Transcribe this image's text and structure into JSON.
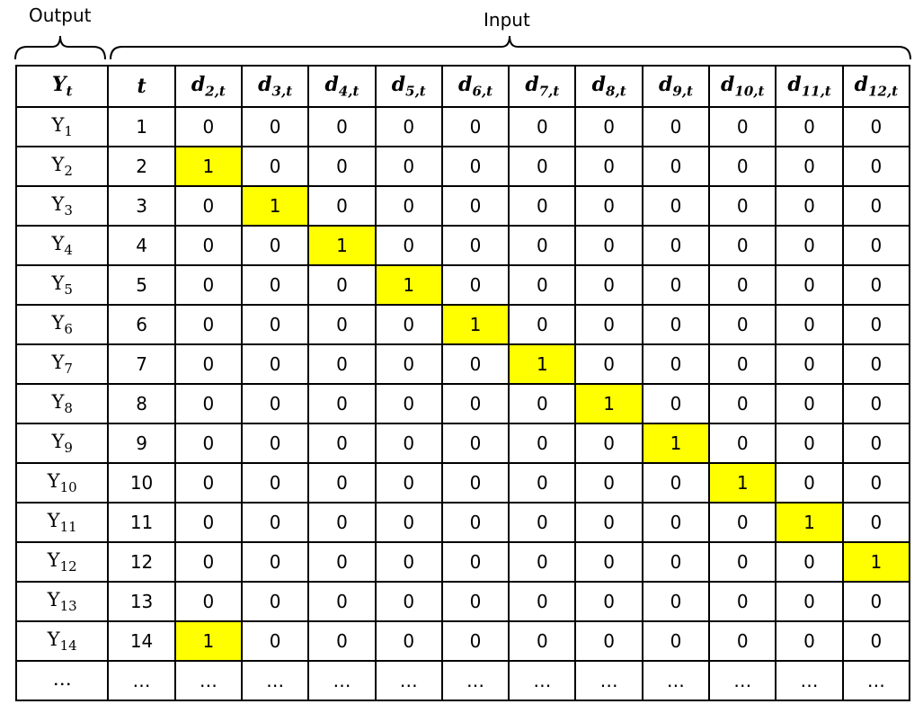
{
  "labels": {
    "output": "Output",
    "input": "Input"
  },
  "header": {
    "y": {
      "base": "Y",
      "sub": "t"
    },
    "t": "t",
    "d": [
      {
        "base": "d",
        "sub": "2,t"
      },
      {
        "base": "d",
        "sub": "3,t"
      },
      {
        "base": "d",
        "sub": "4,t"
      },
      {
        "base": "d",
        "sub": "5,t"
      },
      {
        "base": "d",
        "sub": "6,t"
      },
      {
        "base": "d",
        "sub": "7,t"
      },
      {
        "base": "d",
        "sub": "8,t"
      },
      {
        "base": "d",
        "sub": "9,t"
      },
      {
        "base": "d",
        "sub": "10,t"
      },
      {
        "base": "d",
        "sub": "11,t"
      },
      {
        "base": "d",
        "sub": "12,t"
      }
    ]
  },
  "rows": [
    {
      "y": {
        "base": "Y",
        "sub": "1"
      },
      "t": "1",
      "d": [
        "0",
        "0",
        "0",
        "0",
        "0",
        "0",
        "0",
        "0",
        "0",
        "0",
        "0"
      ]
    },
    {
      "y": {
        "base": "Y",
        "sub": "2"
      },
      "t": "2",
      "d": [
        "1",
        "0",
        "0",
        "0",
        "0",
        "0",
        "0",
        "0",
        "0",
        "0",
        "0"
      ]
    },
    {
      "y": {
        "base": "Y",
        "sub": "3"
      },
      "t": "3",
      "d": [
        "0",
        "1",
        "0",
        "0",
        "0",
        "0",
        "0",
        "0",
        "0",
        "0",
        "0"
      ]
    },
    {
      "y": {
        "base": "Y",
        "sub": "4"
      },
      "t": "4",
      "d": [
        "0",
        "0",
        "1",
        "0",
        "0",
        "0",
        "0",
        "0",
        "0",
        "0",
        "0"
      ]
    },
    {
      "y": {
        "base": "Y",
        "sub": "5"
      },
      "t": "5",
      "d": [
        "0",
        "0",
        "0",
        "1",
        "0",
        "0",
        "0",
        "0",
        "0",
        "0",
        "0"
      ]
    },
    {
      "y": {
        "base": "Y",
        "sub": "6"
      },
      "t": "6",
      "d": [
        "0",
        "0",
        "0",
        "0",
        "1",
        "0",
        "0",
        "0",
        "0",
        "0",
        "0"
      ]
    },
    {
      "y": {
        "base": "Y",
        "sub": "7"
      },
      "t": "7",
      "d": [
        "0",
        "0",
        "0",
        "0",
        "0",
        "1",
        "0",
        "0",
        "0",
        "0",
        "0"
      ]
    },
    {
      "y": {
        "base": "Y",
        "sub": "8"
      },
      "t": "8",
      "d": [
        "0",
        "0",
        "0",
        "0",
        "0",
        "0",
        "1",
        "0",
        "0",
        "0",
        "0"
      ]
    },
    {
      "y": {
        "base": "Y",
        "sub": "9"
      },
      "t": "9",
      "d": [
        "0",
        "0",
        "0",
        "0",
        "0",
        "0",
        "0",
        "1",
        "0",
        "0",
        "0"
      ]
    },
    {
      "y": {
        "base": "Y",
        "sub": "10"
      },
      "t": "10",
      "d": [
        "0",
        "0",
        "0",
        "0",
        "0",
        "0",
        "0",
        "0",
        "1",
        "0",
        "0"
      ]
    },
    {
      "y": {
        "base": "Y",
        "sub": "11"
      },
      "t": "11",
      "d": [
        "0",
        "0",
        "0",
        "0",
        "0",
        "0",
        "0",
        "0",
        "0",
        "1",
        "0"
      ]
    },
    {
      "y": {
        "base": "Y",
        "sub": "12"
      },
      "t": "12",
      "d": [
        "0",
        "0",
        "0",
        "0",
        "0",
        "0",
        "0",
        "0",
        "0",
        "0",
        "1"
      ]
    },
    {
      "y": {
        "base": "Y",
        "sub": "13"
      },
      "t": "13",
      "d": [
        "0",
        "0",
        "0",
        "0",
        "0",
        "0",
        "0",
        "0",
        "0",
        "0",
        "0"
      ]
    },
    {
      "y": {
        "base": "Y",
        "sub": "14"
      },
      "t": "14",
      "d": [
        "1",
        "0",
        "0",
        "0",
        "0",
        "0",
        "0",
        "0",
        "0",
        "0",
        "0"
      ]
    },
    {
      "y": {
        "base": "…",
        "sub": ""
      },
      "t": "…",
      "d": [
        "…",
        "…",
        "…",
        "…",
        "…",
        "…",
        "…",
        "…",
        "…",
        "…",
        "…"
      ]
    }
  ],
  "highlight_value": "1",
  "colors": {
    "highlight": "#ffff00",
    "border": "#000000",
    "text": "#000000"
  }
}
